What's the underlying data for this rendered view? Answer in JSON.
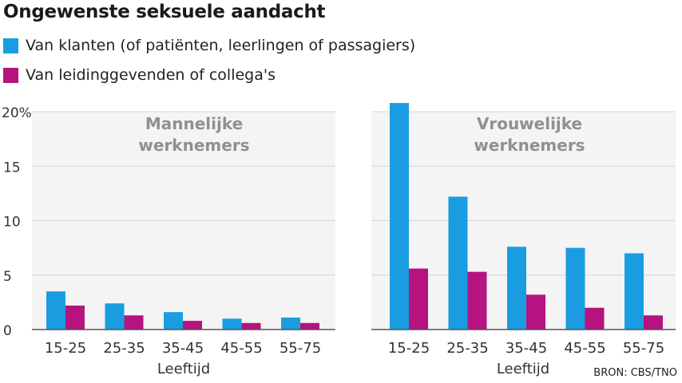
{
  "title": "Ongewenste seksuele aandacht",
  "source": "BRON: CBS/TNO",
  "colors": {
    "clients": "#1a9de0",
    "colleagues": "#b5137f",
    "panel": "#f4f4f4",
    "grid": "#d6d6d6",
    "panel_title": "#909090"
  },
  "chart_data": {
    "type": "bar",
    "legend": [
      {
        "name": "Van klanten (of patiënten, leerlingen of passagiers)",
        "color": "#1a9de0"
      },
      {
        "name": "Van leidinggevenden of collega's",
        "color": "#b5137f"
      }
    ],
    "yticks": [
      "0",
      "5",
      "10",
      "15",
      "20%"
    ],
    "ylim": [
      0,
      20
    ],
    "grid": true,
    "panels": [
      {
        "title_lines": [
          "Mannelijke",
          "werknemers"
        ],
        "xlabel": "Leeftijd",
        "categories": [
          "15-25",
          "25-35",
          "35-45",
          "45-55",
          "55-75"
        ],
        "series": [
          {
            "name": "Van klanten (of patiënten, leerlingen of passagiers)",
            "values": [
              3.5,
              2.4,
              1.6,
              1.0,
              1.1
            ]
          },
          {
            "name": "Van leidinggevenden of collega's",
            "values": [
              2.2,
              1.3,
              0.8,
              0.6,
              0.6
            ]
          }
        ]
      },
      {
        "title_lines": [
          "Vrouwelijke",
          "werknemers"
        ],
        "xlabel": "Leeftijd",
        "categories": [
          "15-25",
          "25-35",
          "35-45",
          "45-55",
          "55-75"
        ],
        "series": [
          {
            "name": "Van klanten (of patiënten, leerlingen of passagiers)",
            "values": [
              20.8,
              12.2,
              7.6,
              7.5,
              7.0
            ]
          },
          {
            "name": "Van leidinggevenden of collega's",
            "values": [
              5.6,
              5.3,
              3.2,
              2.0,
              1.3
            ]
          }
        ]
      }
    ]
  }
}
